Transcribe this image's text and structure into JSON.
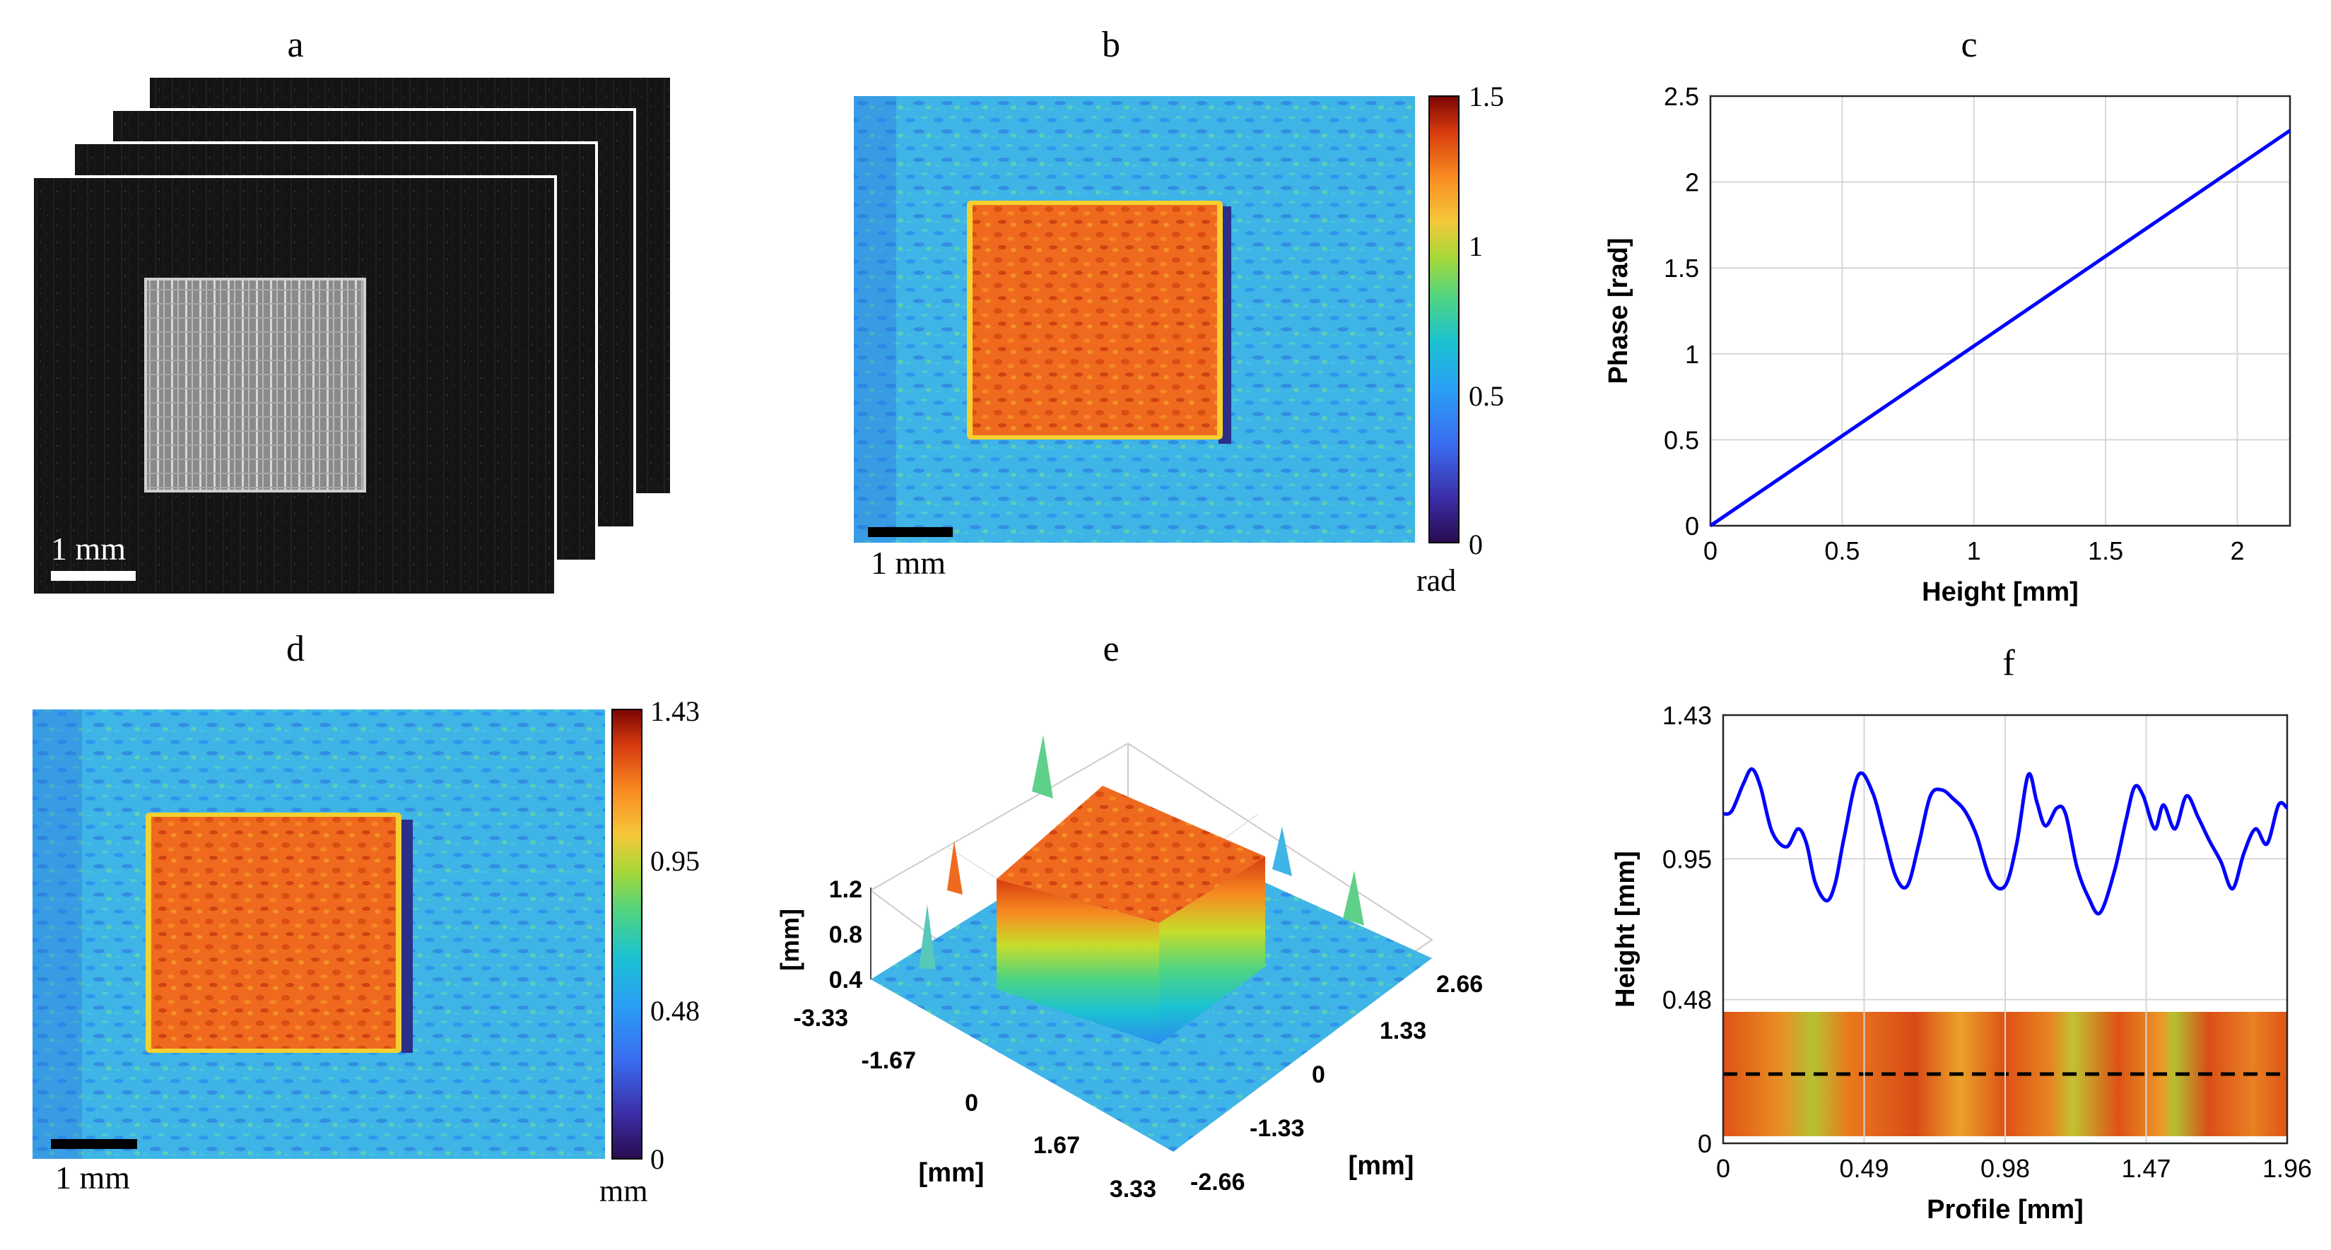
{
  "figure": {
    "panel_labels": [
      "a",
      "b",
      "c",
      "d",
      "e",
      "f"
    ]
  },
  "panel_a": {
    "scale_bar_label": "1 mm",
    "stack_count": 4
  },
  "panel_b": {
    "scale_bar_label": "1 mm",
    "colorbar_unit": "rad",
    "colorbar_ticks": [
      "1.5",
      "1",
      "0.5",
      "0"
    ]
  },
  "panel_d": {
    "scale_bar_label": "1 mm",
    "colorbar_unit": "mm",
    "colorbar_ticks": [
      "1.43",
      "0.95",
      "0.48",
      "0"
    ]
  },
  "panel_e": {
    "z_axis_label": "[mm]",
    "z_ticks": [
      "1.2",
      "0.8",
      "0.4"
    ],
    "x_axis_label": "[mm]",
    "x_ticks": [
      "-3.33",
      "-1.67",
      "0",
      "1.67",
      "3.33"
    ],
    "y_axis_label": "[mm]",
    "y_ticks": [
      "2.66",
      "1.33",
      "0",
      "-1.33",
      "-2.66"
    ]
  },
  "chart_data": [
    {
      "id": "c",
      "type": "line",
      "xlabel": "Height [mm]",
      "ylabel": "Phase [rad]",
      "xlim": [
        0,
        2.2
      ],
      "ylim": [
        0,
        2.5
      ],
      "xticks": [
        "0",
        "0.5",
        "1",
        "1.5",
        "2"
      ],
      "yticks": [
        "0",
        "0.5",
        "1",
        "1.5",
        "2",
        "2.5"
      ],
      "grid": true,
      "series": [
        {
          "name": "phase",
          "color": "#0000ff",
          "x": [
            0,
            2.2
          ],
          "y": [
            0,
            2.3
          ]
        }
      ]
    },
    {
      "id": "f",
      "type": "line",
      "xlabel": "Profile [mm]",
      "ylabel": "Height [mm]",
      "xlim": [
        0,
        1.96
      ],
      "ylim": [
        0,
        1.43
      ],
      "xticks": [
        "0",
        "0.49",
        "0.98",
        "1.47",
        "1.96"
      ],
      "yticks": [
        "0",
        "0.48",
        "0.95",
        "1.43"
      ],
      "grid": true,
      "series": [
        {
          "name": "height profile",
          "color": "#0000ff",
          "x": [
            0,
            0.03,
            0.07,
            0.1,
            0.13,
            0.17,
            0.22,
            0.26,
            0.29,
            0.32,
            0.36,
            0.39,
            0.42,
            0.47,
            0.52,
            0.56,
            0.6,
            0.64,
            0.68,
            0.72,
            0.76,
            0.8,
            0.84,
            0.88,
            0.93,
            0.98,
            1.02,
            1.06,
            1.09,
            1.12,
            1.16,
            1.19,
            1.23,
            1.27,
            1.31,
            1.36,
            1.4,
            1.43,
            1.46,
            1.5,
            1.53,
            1.57,
            1.61,
            1.65,
            1.69,
            1.73,
            1.77,
            1.81,
            1.85,
            1.89,
            1.93,
            1.96
          ],
          "y": [
            1.1,
            1.11,
            1.2,
            1.25,
            1.19,
            1.04,
            0.99,
            1.05,
            1.0,
            0.87,
            0.81,
            0.87,
            1.02,
            1.23,
            1.17,
            1.03,
            0.89,
            0.86,
            1.0,
            1.16,
            1.18,
            1.15,
            1.11,
            1.03,
            0.88,
            0.86,
            1.0,
            1.23,
            1.14,
            1.06,
            1.12,
            1.1,
            0.92,
            0.82,
            0.77,
            0.91,
            1.08,
            1.19,
            1.16,
            1.05,
            1.13,
            1.05,
            1.16,
            1.09,
            1.01,
            0.94,
            0.85,
            0.97,
            1.05,
            1.0,
            1.13,
            1.12
          ]
        }
      ]
    }
  ]
}
